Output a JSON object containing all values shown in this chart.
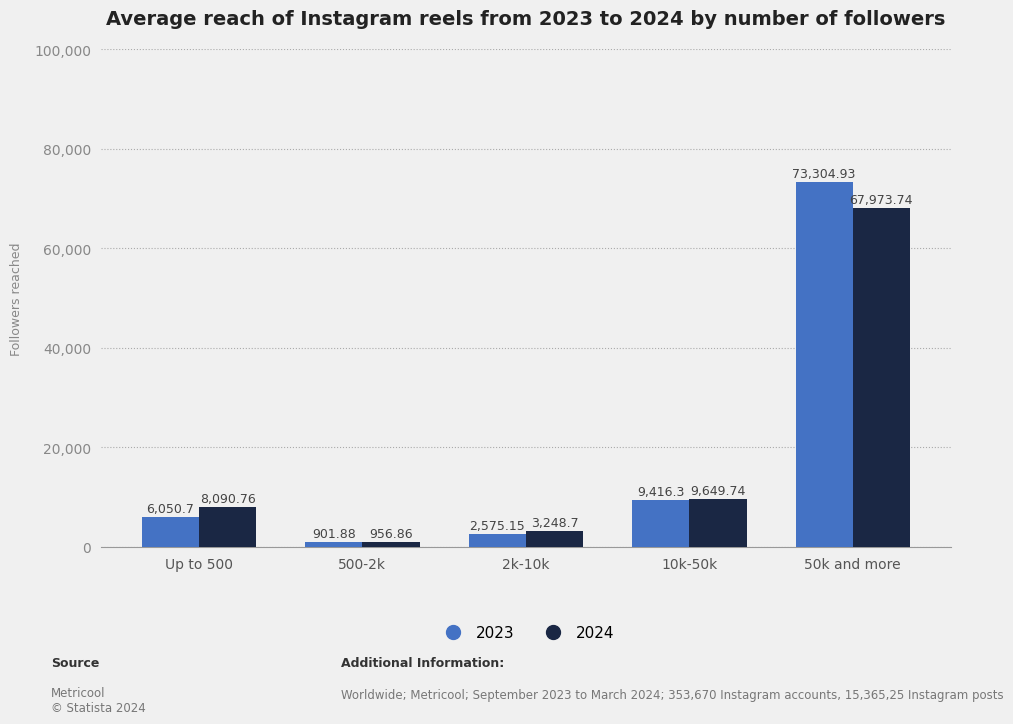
{
  "title": "Average reach of Instagram reels from 2023 to 2024 by number of followers",
  "categories": [
    "Up to 500",
    "500-2k",
    "2k-10k",
    "10k-50k",
    "50k and more"
  ],
  "values_2023": [
    6050.7,
    901.88,
    2575.15,
    9416.3,
    73304.93
  ],
  "values_2024": [
    8090.76,
    956.86,
    3248.7,
    9649.74,
    67973.74
  ],
  "labels_2023": [
    "6,050.7",
    "901.88",
    "2,575.15",
    "9,416.3",
    "73,304.93"
  ],
  "labels_2024": [
    "8,090.76",
    "956.86",
    "3,248.7",
    "9,649.74",
    "67,973.74"
  ],
  "color_2023": "#4472c4",
  "color_2024": "#1a2744",
  "ylabel": "Followers reached",
  "ylim": [
    0,
    100000
  ],
  "yticks": [
    0,
    20000,
    40000,
    60000,
    80000,
    100000
  ],
  "ytick_labels": [
    "0",
    "20,000",
    "40,000",
    "60,000",
    "80,000",
    "100,000"
  ],
  "background_color": "#f0f0f0",
  "plot_bg_color": "#f0f0f0",
  "title_fontsize": 14,
  "axis_label_fontsize": 9,
  "tick_fontsize": 10,
  "bar_label_fontsize": 9,
  "legend_fontsize": 11,
  "source_label": "Source",
  "source_body": "Metricool\n© Statista 2024",
  "additional_info_title": "Additional Information:",
  "additional_info_text": "Worldwide; Metricool; September 2023 to March 2024; 353,670 Instagram accounts, 15,365,25 Instagram posts",
  "bar_width": 0.35
}
